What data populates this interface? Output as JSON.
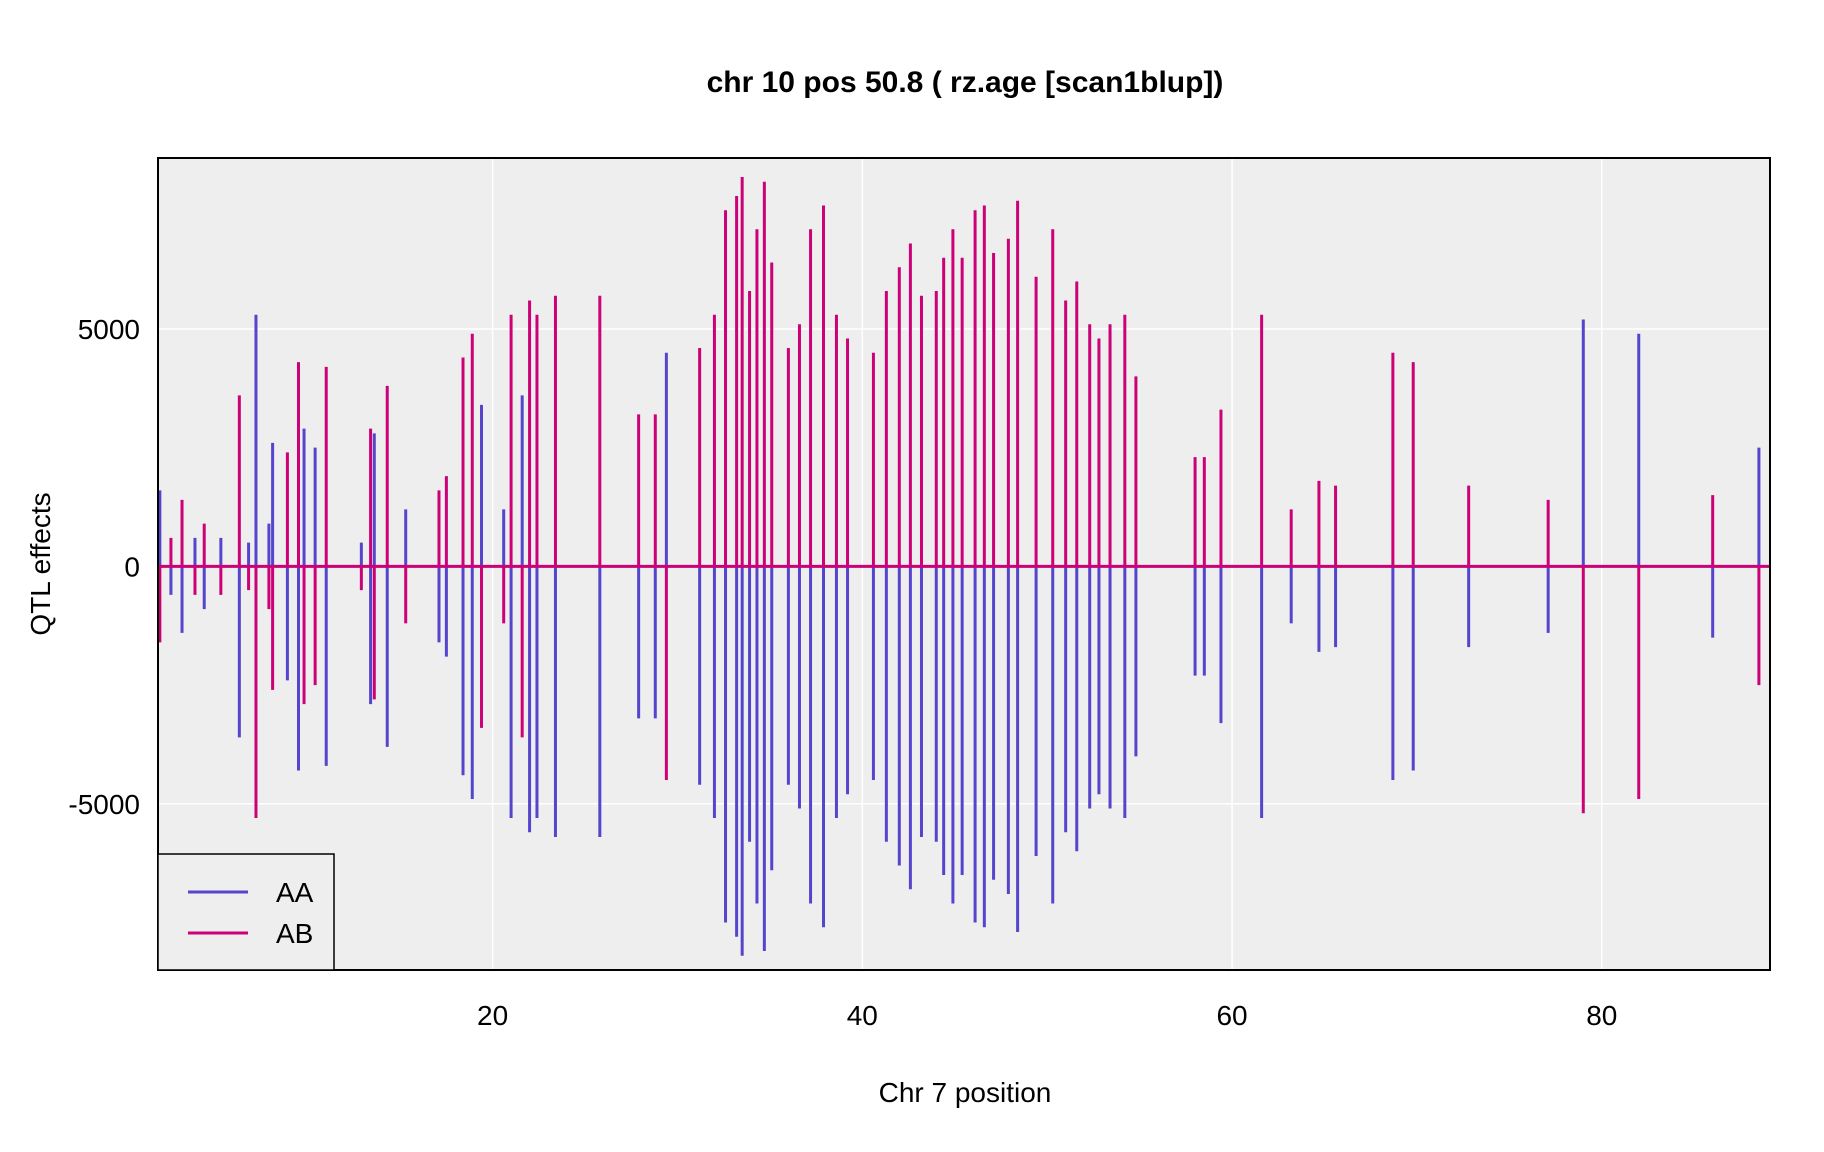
{
  "chart_data": {
    "type": "line",
    "title": "chr 10 pos 50.8 ( rz.age  [scan1blup])",
    "xlabel": "Chr 7 position",
    "ylabel": "QTL effects",
    "xlim": [
      1.9,
      89.1
    ],
    "ylim": [
      -8500,
      8600
    ],
    "x_ticks": [
      20,
      40,
      60,
      80
    ],
    "y_ticks": [
      -5000,
      0,
      5000
    ],
    "grid": true,
    "legend_position": "bottom-left",
    "colors": {
      "AA": "#5544cc",
      "AB": "#cc0077",
      "panel_bg": "#eeeeee",
      "grid": "#ffffff"
    },
    "series": [
      {
        "name": "AA",
        "x": [
          2.0,
          2.6,
          3.2,
          3.9,
          4.4,
          5.3,
          6.3,
          6.8,
          7.2,
          7.9,
          8.1,
          8.9,
          9.5,
          9.8,
          10.4,
          11.0,
          12.9,
          13.4,
          13.6,
          14.3,
          15.3,
          17.1,
          17.5,
          18.4,
          18.9,
          19.4,
          20.6,
          21.0,
          21.6,
          22.0,
          22.4,
          23.4,
          25.8,
          27.9,
          28.8,
          29.4,
          31.2,
          32.0,
          32.6,
          33.2,
          33.5,
          33.9,
          34.3,
          34.7,
          35.1,
          36.0,
          36.6,
          37.2,
          37.9,
          38.6,
          39.2,
          40.6,
          41.3,
          42.0,
          42.6,
          43.2,
          44.0,
          44.4,
          44.9,
          45.4,
          46.1,
          46.6,
          47.1,
          47.9,
          48.4,
          49.4,
          50.3,
          51.0,
          51.6,
          52.3,
          52.8,
          53.4,
          54.2,
          54.8,
          58.0,
          58.5,
          59.4,
          61.6,
          63.2,
          64.7,
          65.6,
          68.7,
          69.8,
          72.8,
          77.1,
          79.0,
          82.0,
          86.0,
          88.5
        ],
        "values": [
          1600,
          -600,
          -1400,
          600,
          -900,
          600,
          -3600,
          500,
          5300,
          900,
          2600,
          -2400,
          -4300,
          2900,
          2500,
          -4200,
          500,
          -2900,
          2800,
          -3800,
          1200,
          -1600,
          -1900,
          -4400,
          -4900,
          3400,
          1200,
          -5300,
          3600,
          -5600,
          -5300,
          -5700,
          -5700,
          -3200,
          -3200,
          4500,
          -4600,
          -5300,
          -7500,
          -7800,
          -8200,
          -5800,
          -7100,
          -8100,
          -6400,
          -4600,
          -5100,
          -7100,
          -7600,
          -5300,
          -4800,
          -4500,
          -5800,
          -6300,
          -6800,
          -5700,
          -5800,
          -6500,
          -7100,
          -6500,
          -7500,
          -7600,
          -6600,
          -6900,
          -7700,
          -6100,
          -7100,
          -5600,
          -6000,
          -5100,
          -4800,
          -5100,
          -5300,
          -4000,
          -2300,
          -2300,
          -3300,
          -5300,
          -1200,
          -1800,
          -1700,
          -4500,
          -4300,
          -1700,
          -1400,
          5200,
          4900,
          -1500,
          2500
        ]
      },
      {
        "name": "AB",
        "x": [
          2.0,
          2.6,
          3.2,
          3.9,
          4.4,
          5.3,
          6.3,
          6.8,
          7.2,
          7.9,
          8.1,
          8.9,
          9.5,
          9.8,
          10.4,
          11.0,
          12.9,
          13.4,
          13.6,
          14.3,
          15.3,
          17.1,
          17.5,
          18.4,
          18.9,
          19.4,
          20.6,
          21.0,
          21.6,
          22.0,
          22.4,
          23.4,
          25.8,
          27.9,
          28.8,
          29.4,
          31.2,
          32.0,
          32.6,
          33.2,
          33.5,
          33.9,
          34.3,
          34.7,
          35.1,
          36.0,
          36.6,
          37.2,
          37.9,
          38.6,
          39.2,
          40.6,
          41.3,
          42.0,
          42.6,
          43.2,
          44.0,
          44.4,
          44.9,
          45.4,
          46.1,
          46.6,
          47.1,
          47.9,
          48.4,
          49.4,
          50.3,
          51.0,
          51.6,
          52.3,
          52.8,
          53.4,
          54.2,
          54.8,
          58.0,
          58.5,
          59.4,
          61.6,
          63.2,
          64.7,
          65.6,
          68.7,
          69.8,
          72.8,
          77.1,
          79.0,
          82.0,
          86.0,
          88.5
        ],
        "values": [
          -1600,
          600,
          1400,
          -600,
          900,
          -600,
          3600,
          -500,
          -5300,
          -900,
          -2600,
          2400,
          4300,
          -2900,
          -2500,
          4200,
          -500,
          2900,
          -2800,
          3800,
          -1200,
          1600,
          1900,
          4400,
          4900,
          -3400,
          -1200,
          5300,
          -3600,
          5600,
          5300,
          5700,
          5700,
          3200,
          3200,
          -4500,
          4600,
          5300,
          7500,
          7800,
          8200,
          5800,
          7100,
          8100,
          6400,
          4600,
          5100,
          7100,
          7600,
          5300,
          4800,
          4500,
          5800,
          6300,
          6800,
          5700,
          5800,
          6500,
          7100,
          6500,
          7500,
          7600,
          6600,
          6900,
          7700,
          6100,
          7100,
          5600,
          6000,
          5100,
          4800,
          5100,
          5300,
          4000,
          2300,
          2300,
          3300,
          5300,
          1200,
          1800,
          1700,
          4500,
          4300,
          1700,
          1400,
          -5200,
          -4900,
          1500,
          -2500
        ]
      }
    ]
  }
}
